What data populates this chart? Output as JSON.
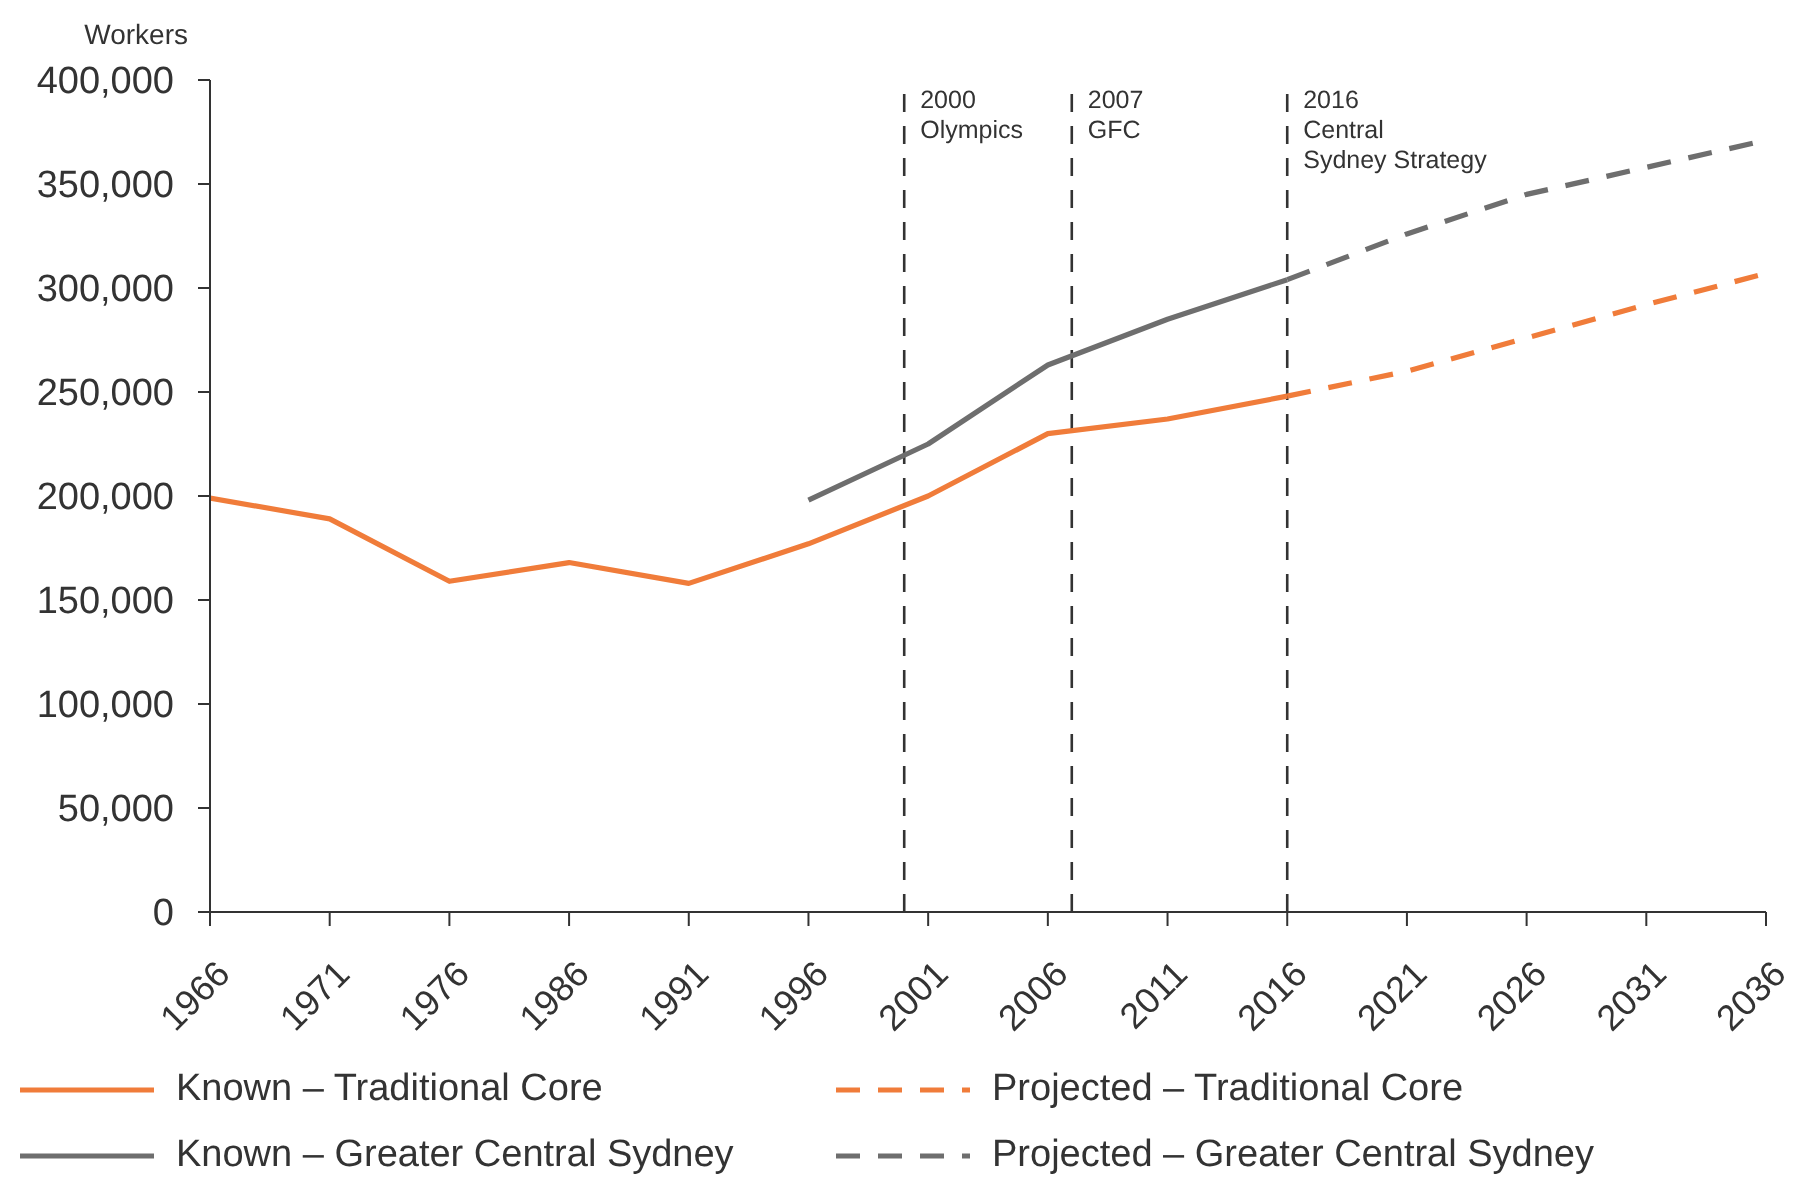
{
  "chart_data": {
    "type": "line",
    "ylabel": "Workers",
    "categories": [
      "1966",
      "1971",
      "1976",
      "1986",
      "1991",
      "1996",
      "2001",
      "2006",
      "2011",
      "2016",
      "2021",
      "2026",
      "2031",
      "2036"
    ],
    "series": [
      {
        "name": "Known – Traditional Core",
        "color": "#f07c3a",
        "line_style": "solid",
        "values": [
          199000,
          189000,
          159000,
          168000,
          158000,
          177000,
          200000,
          230000,
          237000,
          248000,
          null,
          null,
          null,
          null
        ]
      },
      {
        "name": "Known – Greater Central Sydney",
        "color": "#6e6e6e",
        "line_style": "solid",
        "values": [
          null,
          null,
          null,
          null,
          null,
          198000,
          225000,
          263000,
          285000,
          304000,
          null,
          null,
          null,
          null
        ]
      },
      {
        "name": "Projected – Traditional Core",
        "color": "#f07c3a",
        "line_style": "dashed",
        "values": [
          null,
          null,
          null,
          null,
          null,
          null,
          null,
          null,
          null,
          248000,
          260000,
          276000,
          292000,
          307000
        ]
      },
      {
        "name": "Projected – Greater Central Sydney",
        "color": "#6e6e6e",
        "line_style": "dashed",
        "values": [
          null,
          null,
          null,
          null,
          null,
          null,
          null,
          null,
          null,
          304000,
          326000,
          345000,
          358000,
          371000
        ]
      }
    ],
    "ylim": [
      0,
      400000
    ],
    "yticks": [
      0,
      {
        "value": 50000,
        "label": "50,000"
      },
      {
        "value": 100000,
        "label": "100,000"
      },
      {
        "value": 150000,
        "label": "150,000"
      },
      {
        "value": 200000,
        "label": "200,000"
      },
      {
        "value": 250000,
        "label": "250,000"
      },
      {
        "value": 300000,
        "label": "300,000"
      },
      {
        "value": 350000,
        "label": "350,000"
      },
      {
        "value": 400000,
        "label": "400,000"
      }
    ],
    "ref_lines": [
      {
        "axis": "x",
        "value": "2016",
        "label": "2016\nCentral\nSydney Strategy",
        "color": "#333333",
        "line_style": "dashed"
      }
    ],
    "annotations": [
      "2000\nOlympics",
      "2007\nGFC"
    ],
    "legend": "bottom",
    "marker": "none"
  }
}
